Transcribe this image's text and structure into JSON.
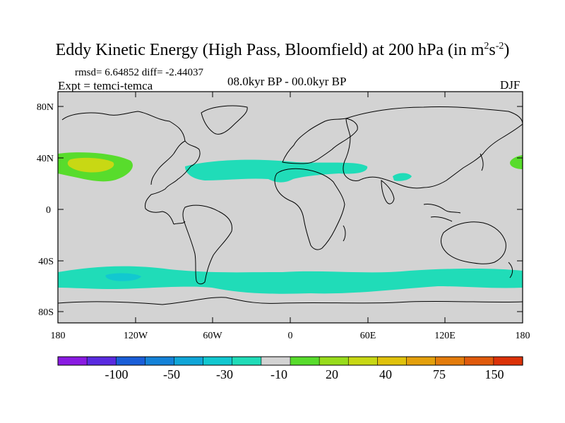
{
  "header": {
    "title_main": "Eddy Kinetic Energy (High Pass, Bloomfield) at 200 hPa (in m",
    "title_sup1": "2",
    "title_mid": "s",
    "title_sup2": "-2",
    "title_end": ")",
    "stats": "rmsd= 6.64852 diff= -2.44037",
    "experiment": "Expt = temci-temca",
    "period": "08.0kyr BP - 00.0kyr BP",
    "season": "DJF"
  },
  "map": {
    "background_color": "#d3d3d3",
    "lat_labels": [
      "80N",
      "40N",
      "0",
      "40S",
      "80S"
    ],
    "lon_labels": [
      "180",
      "120W",
      "60W",
      "0",
      "60E",
      "120E",
      "180"
    ]
  },
  "colorbar": {
    "colors": [
      "#8a1be2",
      "#5a2be0",
      "#1a5ed8",
      "#1482d8",
      "#10a6d8",
      "#12c8d0",
      "#20dcb8",
      "#d3d3d3",
      "#58dc2c",
      "#98dc1c",
      "#c8d814",
      "#e0c20c",
      "#e4a00c",
      "#e47c0c",
      "#e05a0c",
      "#dc3208"
    ],
    "labels": [
      "-100",
      "-50",
      "-30",
      "-10",
      "20",
      "40",
      "75",
      "150"
    ]
  },
  "legend_colors": {
    "cyan": "#20dcb8",
    "cyan_dark": "#12c8d0",
    "green": "#58dc2c",
    "yellow_green": "#c8d814"
  }
}
